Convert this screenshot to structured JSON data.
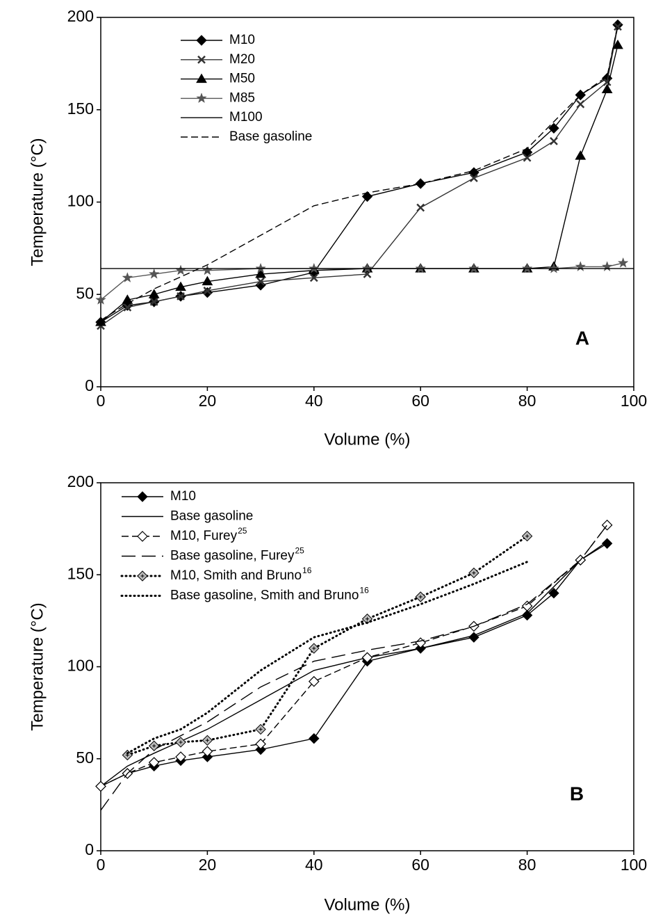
{
  "chart_data": [
    {
      "type": "line",
      "label": "A",
      "xlabel": "Volume (%)",
      "ylabel": "Temperature (°C)",
      "xlim": [
        0,
        100
      ],
      "xticks": [
        0,
        20,
        40,
        60,
        80,
        100
      ],
      "ylim": [
        0,
        200
      ],
      "yticks": [
        0,
        50,
        100,
        150,
        200
      ],
      "series": [
        {
          "name": "M10",
          "color": "#000000",
          "marker": "diamond",
          "line_style": "solid",
          "x": [
            0,
            5,
            10,
            15,
            20,
            30,
            40,
            50,
            60,
            70,
            80,
            85,
            90,
            95,
            97
          ],
          "values": [
            35,
            44,
            46,
            49,
            51,
            55,
            62,
            103,
            110,
            116,
            127,
            140,
            158,
            167,
            196
          ]
        },
        {
          "name": "M20",
          "color": "#333333",
          "marker": "x",
          "line_style": "solid",
          "x": [
            0,
            5,
            10,
            15,
            20,
            30,
            40,
            50,
            60,
            70,
            80,
            85,
            90,
            95,
            97
          ],
          "values": [
            33,
            43,
            46,
            49,
            52,
            57,
            59,
            61,
            97,
            113,
            124,
            133,
            153,
            165,
            195
          ]
        },
        {
          "name": "M50",
          "color": "#000000",
          "marker": "triangle",
          "line_style": "solid",
          "x": [
            0,
            5,
            10,
            15,
            20,
            30,
            40,
            50,
            60,
            70,
            80,
            85,
            90,
            95,
            97
          ],
          "values": [
            35,
            47,
            50,
            54,
            57,
            61,
            63,
            64,
            64,
            64,
            64,
            65,
            125,
            161,
            185
          ]
        },
        {
          "name": "M85",
          "color": "#555555",
          "marker": "star",
          "line_style": "solid",
          "x": [
            0,
            5,
            10,
            15,
            20,
            30,
            40,
            50,
            60,
            70,
            80,
            85,
            90,
            95,
            98
          ],
          "values": [
            47,
            59,
            61,
            63,
            63,
            64,
            64,
            64,
            64,
            64,
            64,
            64,
            65,
            65,
            67
          ]
        },
        {
          "name": "M100",
          "color": "#000000",
          "marker": null,
          "line_style": "solid",
          "x": [
            0,
            100
          ],
          "values": [
            64,
            64
          ]
        },
        {
          "name": "Base gasoline",
          "color": "#000000",
          "marker": null,
          "line_style": "dashed",
          "x": [
            0,
            5,
            10,
            20,
            30,
            40,
            50,
            60,
            70,
            80,
            90,
            95,
            97
          ],
          "values": [
            36,
            45,
            53,
            66,
            82,
            98,
            105,
            110,
            117,
            129,
            158,
            168,
            196
          ]
        }
      ]
    },
    {
      "type": "line",
      "label": "B",
      "xlabel": "Volume  (%)",
      "ylabel": "Temperature (°C)",
      "xlim": [
        0,
        100
      ],
      "xticks": [
        0,
        20,
        40,
        60,
        80,
        100
      ],
      "ylim": [
        0,
        200
      ],
      "yticks": [
        0,
        50,
        100,
        150,
        200
      ],
      "series": [
        {
          "name": "M10",
          "color": "#000000",
          "marker": "diamond",
          "line_style": "solid",
          "x": [
            0,
            5,
            10,
            15,
            20,
            30,
            40,
            50,
            60,
            70,
            80,
            85,
            90,
            95
          ],
          "values": [
            35,
            42,
            46,
            49,
            51,
            55,
            61,
            103,
            110,
            116,
            128,
            140,
            158,
            167
          ]
        },
        {
          "name": "Base gasoline",
          "color": "#000000",
          "marker": null,
          "line_style": "solid",
          "x": [
            0,
            5,
            10,
            20,
            30,
            40,
            50,
            60,
            70,
            80,
            90,
            95
          ],
          "values": [
            35,
            46,
            53,
            66,
            82,
            98,
            105,
            110,
            117,
            129,
            158,
            168
          ]
        },
        {
          "name": "M10, Furey",
          "superscript": "25",
          "color": "#000000",
          "marker": "open-diamond",
          "line_style": "dashed",
          "x": [
            0,
            5,
            10,
            15,
            20,
            30,
            40,
            50,
            60,
            70,
            80,
            90,
            95
          ],
          "values": [
            35,
            42,
            48,
            51,
            54,
            58,
            92,
            105,
            113,
            122,
            133,
            158,
            177
          ]
        },
        {
          "name": "Base gasoline, Furey",
          "superscript": "25",
          "color": "#000000",
          "marker": null,
          "line_style": "longdash",
          "x": [
            0,
            5,
            10,
            20,
            30,
            40,
            50,
            60,
            70,
            80,
            90,
            95
          ],
          "values": [
            22,
            42,
            55,
            70,
            89,
            103,
            109,
            114,
            122,
            134,
            158,
            177
          ]
        },
        {
          "name": "M10, Smith and Bruno",
          "superscript": "16",
          "color": "#000000",
          "marker": "dotted-diamond",
          "line_style": "dotted",
          "x": [
            5,
            10,
            15,
            20,
            30,
            40,
            50,
            60,
            70,
            80
          ],
          "values": [
            52,
            57,
            59,
            60,
            66,
            110,
            126,
            138,
            151,
            171
          ]
        },
        {
          "name": "Base gasoline, Smith and Bruno",
          "superscript": "16",
          "color": "#000000",
          "marker": null,
          "line_style": "dotted",
          "x": [
            5,
            10,
            15,
            20,
            30,
            40,
            50,
            60,
            70,
            80
          ],
          "values": [
            53,
            61,
            66,
            75,
            98,
            116,
            124,
            134,
            145,
            157
          ]
        }
      ]
    }
  ]
}
